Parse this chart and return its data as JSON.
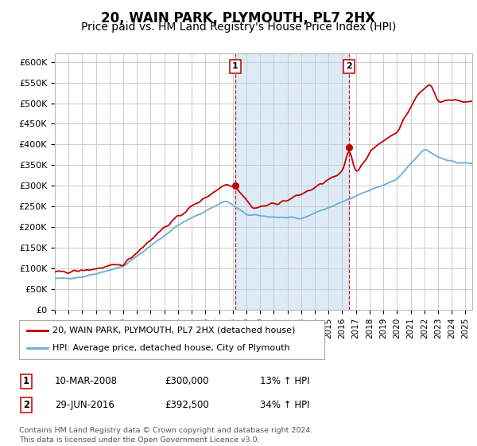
{
  "title": "20, WAIN PARK, PLYMOUTH, PL7 2HX",
  "subtitle": "Price paid vs. HM Land Registry's House Price Index (HPI)",
  "ylim": [
    0,
    620000
  ],
  "yticks": [
    0,
    50000,
    100000,
    150000,
    200000,
    250000,
    300000,
    350000,
    400000,
    450000,
    500000,
    550000,
    600000
  ],
  "ytick_labels": [
    "£0",
    "£50K",
    "£100K",
    "£150K",
    "£200K",
    "£250K",
    "£300K",
    "£350K",
    "£400K",
    "£450K",
    "£500K",
    "£550K",
    "£600K"
  ],
  "xlim_start": 1995.0,
  "xlim_end": 2025.5,
  "xtick_years": [
    1995,
    1996,
    1997,
    1998,
    1999,
    2000,
    2001,
    2002,
    2003,
    2004,
    2005,
    2006,
    2007,
    2008,
    2009,
    2010,
    2011,
    2012,
    2013,
    2014,
    2015,
    2016,
    2017,
    2018,
    2019,
    2020,
    2021,
    2022,
    2023,
    2024,
    2025
  ],
  "sale1_x": 2008.19,
  "sale1_y": 300000,
  "sale2_x": 2016.49,
  "sale2_y": 392500,
  "sale1_label": "1",
  "sale2_label": "2",
  "hpi_color": "#6baed6",
  "price_color": "#c00000",
  "bg_color": "#ffffff",
  "plot_bg_color": "#ffffff",
  "grid_color": "#cccccc",
  "shaded_region_color": "#d6e8f5",
  "legend_label_price": "20, WAIN PARK, PLYMOUTH, PL7 2HX (detached house)",
  "legend_label_hpi": "HPI: Average price, detached house, City of Plymouth",
  "table_row1": [
    "1",
    "10-MAR-2008",
    "£300,000",
    "13% ↑ HPI"
  ],
  "table_row2": [
    "2",
    "29-JUN-2016",
    "£392,500",
    "34% ↑ HPI"
  ],
  "footer": "Contains HM Land Registry data © Crown copyright and database right 2024.\nThis data is licensed under the Open Government Licence v3.0.",
  "title_fontsize": 12,
  "subtitle_fontsize": 10
}
